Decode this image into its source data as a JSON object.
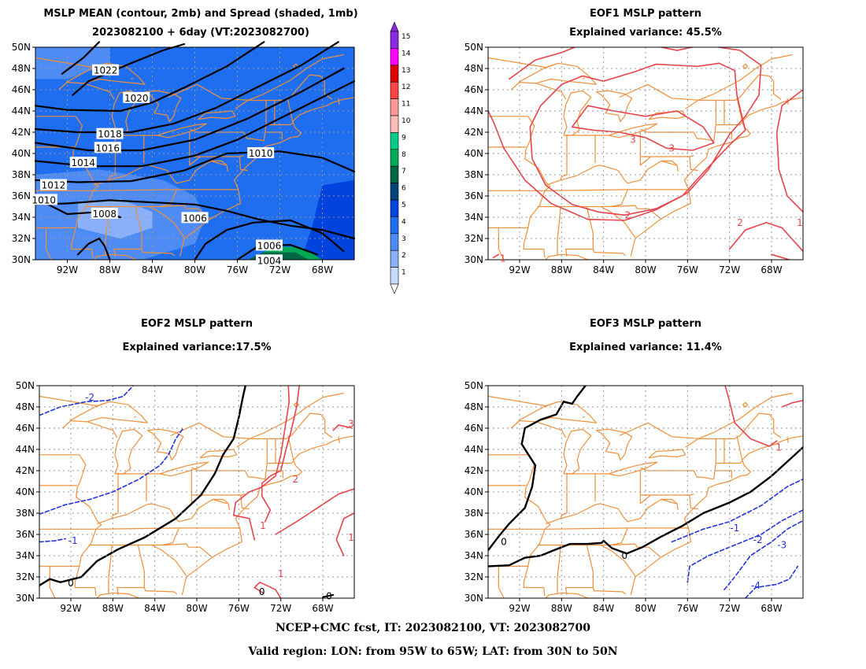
{
  "panels": {
    "mean": {
      "title_line1": "MSLP MEAN (contour, 2mb) and Spread (shaded, 1mb)",
      "title_line2": "2023082100 + 6day (VT:2023082700)"
    },
    "eof1": {
      "title_line1": "EOF1 MSLP pattern",
      "title_line2": "Explained variance: 45.5%"
    },
    "eof2": {
      "title_line1": "EOF2 MSLP pattern",
      "title_line2": "Explained variance:17.5%"
    },
    "eof3": {
      "title_line1": "EOF3 MSLP pattern",
      "title_line2": "Explained variance: 11.4%"
    }
  },
  "axes": {
    "lat_labels": [
      "50N",
      "48N",
      "46N",
      "44N",
      "42N",
      "40N",
      "38N",
      "36N",
      "34N",
      "32N",
      "30N"
    ],
    "lon_labels": [
      "92W",
      "88W",
      "84W",
      "80W",
      "76W",
      "72W",
      "68W"
    ]
  },
  "colorbar": {
    "labels": [
      "15",
      "14",
      "13",
      "12",
      "11",
      "10",
      "9",
      "8",
      "7",
      "6",
      "5",
      "4",
      "3",
      "2",
      "1"
    ],
    "colors": [
      "#8a2be2",
      "#ff00ff",
      "#e00000",
      "#ff4444",
      "#ff9999",
      "#ffbbbb",
      "#00cc88",
      "#00aa55",
      "#006644",
      "#004477",
      "#0044dd",
      "#1e6eef",
      "#4f8bf5",
      "#8ab0fa",
      "#c6dbff"
    ]
  },
  "mean_contour_labels": [
    {
      "t": "1022"
    },
    {
      "t": "1020"
    },
    {
      "t": "1018"
    },
    {
      "t": "1016"
    },
    {
      "t": "1014"
    },
    {
      "t": "1012"
    },
    {
      "t": "1010"
    },
    {
      "t": "1010"
    },
    {
      "t": "1008"
    },
    {
      "t": "1006"
    },
    {
      "t": "1006"
    },
    {
      "t": "1004"
    }
  ],
  "eof1_labels": [
    "3",
    "3",
    "2",
    "2",
    "1",
    "1"
  ],
  "eof2_labels": [
    "-2",
    "-1",
    "0",
    "1",
    "1",
    "2",
    "3",
    "0",
    "0",
    "1"
  ],
  "eof3_labels": [
    "0",
    "0",
    "-1",
    "-2",
    "-3",
    "-4",
    "1"
  ],
  "footer": {
    "line1": "NCEP+CMC fcst, IT: 2023082100, VT: 2023082700",
    "line2": "Valid region: LON: from 95W to 65W; LAT: from 30N to 50N"
  },
  "colors": {
    "map_lines": "#f0903a",
    "positive": "#e8424a",
    "negative": "#2233dd",
    "zero": "#000000",
    "grid": "#999999"
  }
}
